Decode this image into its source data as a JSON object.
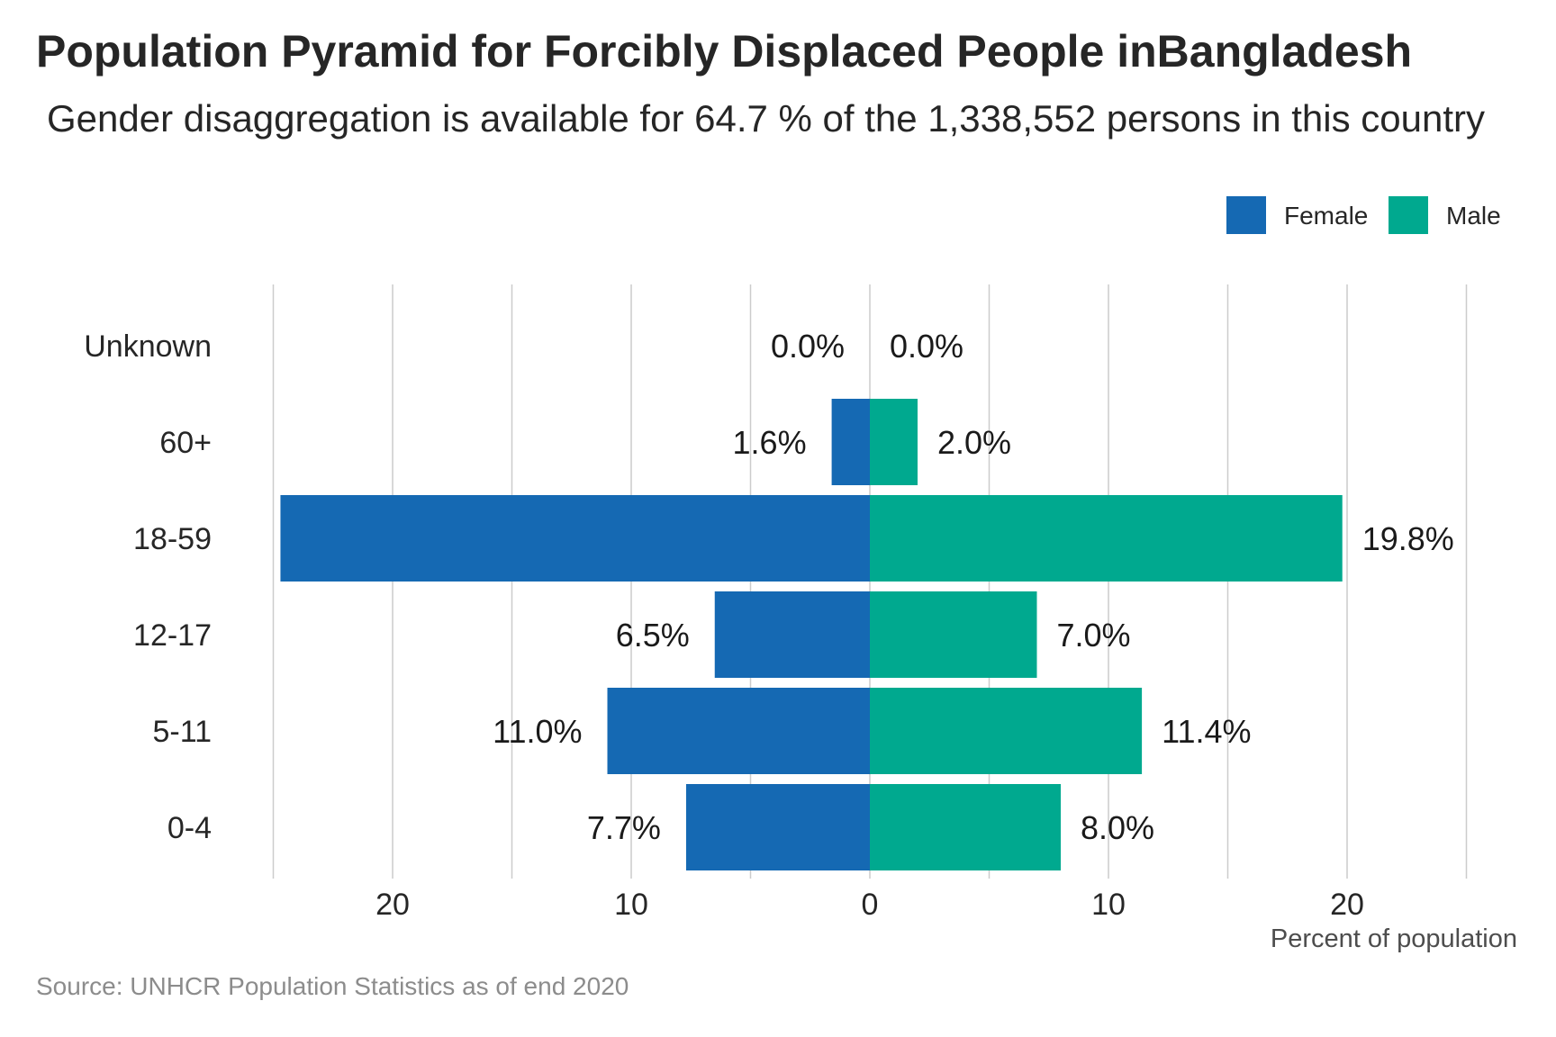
{
  "header": {
    "title": "Population Pyramid for Forcibly Displaced People inBangladesh",
    "subtitle": "Gender disaggregation is available for 64.7 % of the 1,338,552 persons in this country"
  },
  "footer": {
    "source": "Source: UNHCR Population Statistics as of end 2020"
  },
  "colors": {
    "female": "#1569b3",
    "male": "#00a98f",
    "grid": "#cccccc"
  },
  "chart_data": {
    "type": "bar",
    "orientation": "horizontal-diverging",
    "title": "Population Pyramid for Forcibly Displaced People inBangladesh",
    "xlabel": "Percent of population",
    "ylabel": "",
    "xlim": [
      -25,
      25
    ],
    "x_ticks": [
      {
        "value": -20,
        "label": "20"
      },
      {
        "value": -10,
        "label": "10"
      },
      {
        "value": 0,
        "label": "0"
      },
      {
        "value": 10,
        "label": "10"
      },
      {
        "value": 20,
        "label": "20"
      }
    ],
    "grid": "vertical",
    "legend_position": "top-right",
    "categories": [
      "Unknown",
      "60+",
      "18-59",
      "12-17",
      "5-11",
      "0-4"
    ],
    "series": [
      {
        "name": "Female",
        "values": [
          0.0,
          1.6,
          24.7,
          6.5,
          11.0,
          7.7
        ],
        "labels": [
          "0.0%",
          "1.6%",
          "",
          "6.5%",
          "11.0%",
          "7.7%"
        ]
      },
      {
        "name": "Male",
        "values": [
          0.0,
          2.0,
          19.8,
          7.0,
          11.4,
          8.0
        ],
        "labels": [
          "0.0%",
          "2.0%",
          "19.8%",
          "7.0%",
          "11.4%",
          "8.0%"
        ]
      }
    ]
  }
}
